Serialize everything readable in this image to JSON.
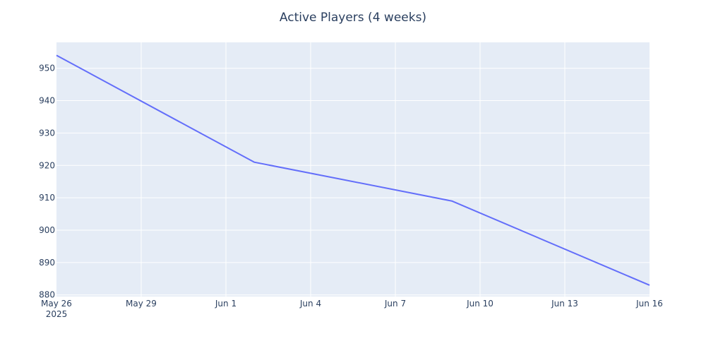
{
  "chart_data": {
    "type": "line",
    "title": "Active Players (4 weeks)",
    "xlabel": "",
    "ylabel": "",
    "x_range": [
      "2025-05-26",
      "2025-06-16"
    ],
    "ylim": [
      879.5,
      958
    ],
    "y_ticks": [
      880,
      890,
      900,
      910,
      920,
      930,
      940,
      950
    ],
    "x_ticks": [
      {
        "date": "2025-05-26",
        "label": "May 26",
        "sublabel": "2025"
      },
      {
        "date": "2025-05-29",
        "label": "May 29"
      },
      {
        "date": "2025-06-01",
        "label": "Jun 1"
      },
      {
        "date": "2025-06-04",
        "label": "Jun 4"
      },
      {
        "date": "2025-06-07",
        "label": "Jun 7"
      },
      {
        "date": "2025-06-10",
        "label": "Jun 10"
      },
      {
        "date": "2025-06-13",
        "label": "Jun 13"
      },
      {
        "date": "2025-06-16",
        "label": "Jun 16"
      }
    ],
    "grid": true,
    "series": [
      {
        "color": "#636efa",
        "points": [
          {
            "x": "2025-05-26",
            "y": 954
          },
          {
            "x": "2025-06-02",
            "y": 921
          },
          {
            "x": "2025-06-09",
            "y": 909
          },
          {
            "x": "2025-06-16",
            "y": 883
          }
        ]
      }
    ]
  },
  "colors": {
    "plot_background": "#e5ecf6",
    "grid": "#ffffff",
    "text": "#2a3f5f"
  }
}
